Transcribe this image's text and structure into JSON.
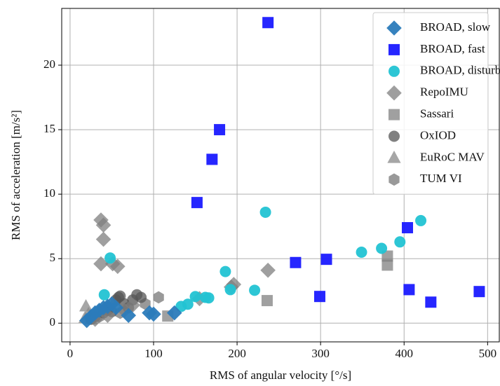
{
  "chart_data": {
    "type": "scatter",
    "xlabel": "RMS of angular velocity [°/s]",
    "ylabel": "RMS of acceleration [m/s²]",
    "xlim": [
      -10,
      514
    ],
    "ylim": [
      -1.45,
      24.4
    ],
    "xticks": [
      0,
      100,
      200,
      300,
      400,
      500
    ],
    "yticks": [
      0,
      5,
      10,
      15,
      20
    ],
    "grid": true,
    "legend": "upper right",
    "series": [
      {
        "name": "BROAD, slow",
        "color": "#2b7bba",
        "marker": "diamond",
        "x": [
          20,
          25,
          30,
          35,
          40,
          45,
          50,
          55,
          70,
          95,
          100,
          125
        ],
        "y": [
          0.2,
          0.5,
          0.8,
          1.0,
          1.2,
          1.3,
          1.5,
          1.2,
          0.6,
          0.8,
          0.7,
          0.8
        ]
      },
      {
        "name": "BROAD, fast",
        "color": "#1a1aff",
        "marker": "square",
        "x": [
          237,
          179,
          170,
          152,
          270,
          307,
          299,
          404,
          406,
          432,
          490
        ],
        "y": [
          23.3,
          15.0,
          12.7,
          9.35,
          4.7,
          4.95,
          2.07,
          7.4,
          2.6,
          1.63,
          2.45
        ]
      },
      {
        "name": "BROAD, disturbed",
        "color": "#22c3d3",
        "marker": "circle",
        "x": [
          234,
          420,
          373,
          349,
          395,
          186,
          221,
          192,
          166,
          162,
          150,
          141,
          133,
          48,
          41
        ],
        "y": [
          8.6,
          7.95,
          5.8,
          5.5,
          6.3,
          4.0,
          2.55,
          2.6,
          1.96,
          2.0,
          2.06,
          1.47,
          1.3,
          5.05,
          2.2
        ]
      },
      {
        "name": "RepoIMU",
        "color": "#7f7f7f",
        "marker": "diamond",
        "x": [
          37,
          40,
          40,
          37,
          51,
          57,
          237,
          196,
          193,
          155,
          30,
          45,
          65,
          75
        ],
        "y": [
          8.0,
          7.6,
          6.5,
          4.6,
          4.6,
          4.4,
          4.1,
          3.0,
          2.8,
          1.9,
          0.3,
          0.6,
          1.0,
          1.4
        ]
      },
      {
        "name": "Sassari",
        "color": "#808080",
        "marker": "square",
        "x": [
          380,
          380,
          236,
          117
        ],
        "y": [
          5.2,
          4.5,
          1.75,
          0.55
        ]
      },
      {
        "name": "OxIOD",
        "color": "#555555",
        "marker": "circle",
        "x": [
          60,
          58,
          55,
          65,
          75,
          80,
          85,
          70,
          45,
          40,
          30,
          25,
          50
        ],
        "y": [
          2.1,
          2.0,
          1.8,
          1.5,
          1.8,
          2.2,
          2.0,
          1.2,
          1.0,
          0.8,
          0.5,
          0.3,
          0.9
        ]
      },
      {
        "name": "EuRoC MAV",
        "color": "#888888",
        "marker": "triangle",
        "x": [
          19,
          22,
          18,
          25
        ],
        "y": [
          1.3,
          0.7,
          0.4,
          0.3
        ]
      },
      {
        "name": "TUM VI",
        "color": "#777777",
        "marker": "hexagon",
        "x": [
          106,
          90,
          60,
          35,
          45
        ],
        "y": [
          2.0,
          1.5,
          0.8,
          0.5,
          1.2
        ]
      }
    ]
  }
}
